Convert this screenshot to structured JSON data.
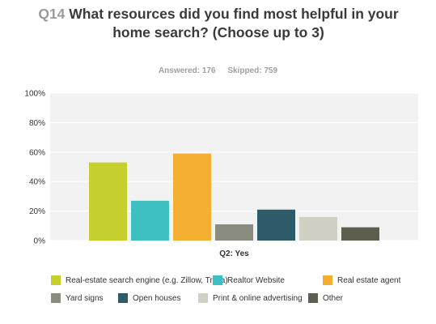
{
  "header": {
    "qnum": "Q14",
    "question": "What resources did you find most helpful in your home search? (Choose up to 3)",
    "answered": "Answered: 176",
    "skipped": "Skipped: 759"
  },
  "chart_data": {
    "type": "bar",
    "categories": [
      "Q2: Yes"
    ],
    "series": [
      {
        "name": "Real-estate search engine (e.g. Zillow, Trulia)",
        "values": [
          53
        ],
        "color": "#c5cf2e"
      },
      {
        "name": "Realtor Website",
        "values": [
          27
        ],
        "color": "#3ec0c3"
      },
      {
        "name": "Real estate agent",
        "values": [
          59
        ],
        "color": "#f4ae31"
      },
      {
        "name": "Yard signs",
        "values": [
          11
        ],
        "color": "#8a8c7f"
      },
      {
        "name": "Open houses",
        "values": [
          21
        ],
        "color": "#2e5b6a"
      },
      {
        "name": "Print & online advertising",
        "values": [
          16
        ],
        "color": "#d1d0c4"
      },
      {
        "name": "Other",
        "values": [
          9
        ],
        "color": "#5e5e4e"
      }
    ],
    "ylim": [
      0,
      100
    ],
    "yticks": [
      "0%",
      "20%",
      "40%",
      "60%",
      "80%",
      "100%"
    ],
    "grid": true,
    "legend": "bottom"
  }
}
